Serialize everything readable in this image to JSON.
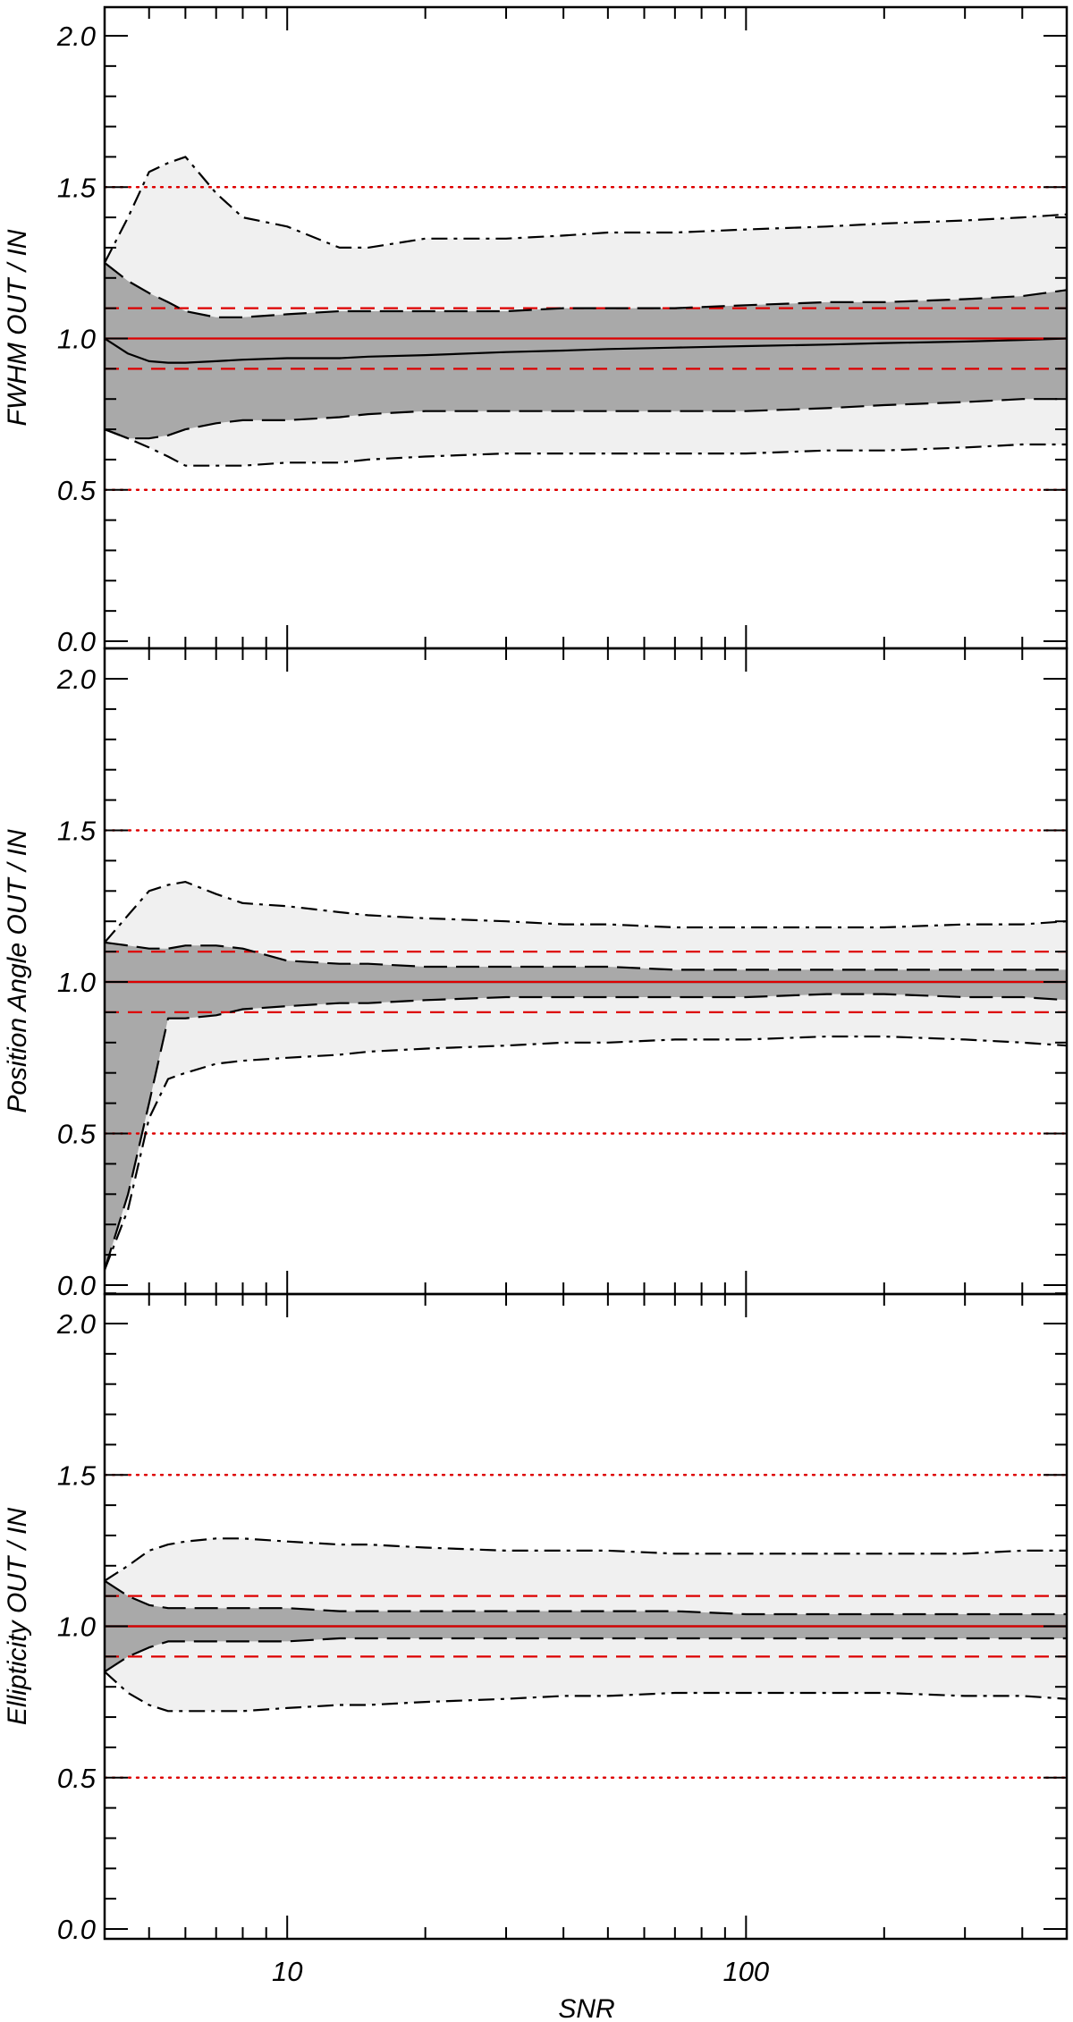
{
  "chart_data": {
    "type": "area",
    "shared_x_axis": {
      "label": "SNR",
      "scale": "log",
      "range": [
        4,
        500
      ],
      "major_ticks": [
        10,
        100
      ],
      "tick_labels": [
        "10",
        "100"
      ]
    },
    "y_range": [
      0,
      2.1
    ],
    "y_ticks": [
      0.0,
      0.5,
      1.0,
      1.5,
      2.0
    ],
    "y_tick_labels": [
      "0.0",
      "0.5",
      "1.0",
      "1.5",
      "2.0"
    ],
    "reference_lines": {
      "color_red": "#dd0000",
      "solid": [
        1.0
      ],
      "dashed": [
        0.9,
        1.1
      ],
      "dotted": [
        0.5,
        1.5
      ]
    },
    "band_colors": {
      "outer": "#f0f0f0",
      "inner": "#a9a9a9",
      "lines": "#000000"
    },
    "panels": [
      {
        "ylabel": "FWHM OUT / IN",
        "x": [
          4,
          4.5,
          5,
          5.5,
          6,
          7,
          8,
          10,
          13,
          15,
          20,
          30,
          40,
          50,
          70,
          100,
          150,
          200,
          300,
          400,
          500
        ],
        "median": [
          1.0,
          0.95,
          0.925,
          0.92,
          0.92,
          0.925,
          0.93,
          0.935,
          0.935,
          0.94,
          0.945,
          0.955,
          0.96,
          0.965,
          0.97,
          0.975,
          0.98,
          0.985,
          0.99,
          0.995,
          1.0
        ],
        "inner_upper": [
          1.25,
          1.19,
          1.15,
          1.12,
          1.09,
          1.07,
          1.07,
          1.08,
          1.09,
          1.09,
          1.09,
          1.09,
          1.1,
          1.1,
          1.1,
          1.11,
          1.12,
          1.12,
          1.13,
          1.14,
          1.16
        ],
        "inner_lower": [
          0.7,
          0.67,
          0.67,
          0.68,
          0.7,
          0.72,
          0.73,
          0.73,
          0.74,
          0.75,
          0.76,
          0.76,
          0.76,
          0.76,
          0.76,
          0.76,
          0.77,
          0.78,
          0.79,
          0.8,
          0.8
        ],
        "outer_upper": [
          1.25,
          1.4,
          1.55,
          1.58,
          1.6,
          1.48,
          1.4,
          1.37,
          1.3,
          1.3,
          1.33,
          1.33,
          1.34,
          1.35,
          1.35,
          1.36,
          1.37,
          1.38,
          1.39,
          1.4,
          1.41
        ],
        "outer_lower": [
          0.7,
          0.67,
          0.64,
          0.61,
          0.58,
          0.58,
          0.58,
          0.59,
          0.59,
          0.6,
          0.61,
          0.62,
          0.62,
          0.62,
          0.62,
          0.62,
          0.63,
          0.63,
          0.64,
          0.65,
          0.65
        ]
      },
      {
        "ylabel": "Position Angle OUT / IN",
        "x": [
          4,
          4.5,
          5,
          5.5,
          6,
          7,
          8,
          10,
          13,
          15,
          20,
          30,
          40,
          50,
          70,
          100,
          150,
          200,
          300,
          400,
          500
        ],
        "median": [
          1.0,
          1.0,
          1.0,
          1.0,
          1.0,
          1.0,
          1.0,
          1.0,
          1.0,
          1.0,
          1.0,
          1.0,
          1.0,
          1.0,
          1.0,
          1.0,
          1.0,
          1.0,
          1.0,
          1.0,
          1.0
        ],
        "inner_upper": [
          1.13,
          1.12,
          1.11,
          1.11,
          1.12,
          1.12,
          1.11,
          1.07,
          1.06,
          1.06,
          1.05,
          1.05,
          1.05,
          1.05,
          1.04,
          1.04,
          1.04,
          1.04,
          1.04,
          1.04,
          1.04
        ],
        "inner_lower": [
          0.05,
          0.3,
          0.6,
          0.88,
          0.88,
          0.89,
          0.91,
          0.92,
          0.93,
          0.93,
          0.94,
          0.95,
          0.95,
          0.95,
          0.95,
          0.95,
          0.96,
          0.96,
          0.95,
          0.95,
          0.94
        ],
        "outer_upper": [
          1.13,
          1.22,
          1.3,
          1.32,
          1.33,
          1.29,
          1.26,
          1.25,
          1.23,
          1.22,
          1.21,
          1.2,
          1.19,
          1.19,
          1.18,
          1.18,
          1.18,
          1.18,
          1.19,
          1.19,
          1.2
        ],
        "outer_lower": [
          0.05,
          0.25,
          0.55,
          0.68,
          0.7,
          0.73,
          0.74,
          0.75,
          0.76,
          0.77,
          0.78,
          0.79,
          0.8,
          0.8,
          0.81,
          0.81,
          0.82,
          0.82,
          0.81,
          0.8,
          0.79
        ]
      },
      {
        "ylabel": "Ellipticity OUT / IN",
        "x": [
          4,
          4.5,
          5,
          5.5,
          6,
          7,
          8,
          10,
          13,
          15,
          20,
          30,
          40,
          50,
          70,
          100,
          150,
          200,
          300,
          400,
          500
        ],
        "median": [
          1.0,
          1.0,
          1.0,
          1.0,
          1.0,
          1.0,
          1.0,
          1.0,
          1.0,
          1.0,
          1.0,
          1.0,
          1.0,
          1.0,
          1.0,
          1.0,
          1.0,
          1.0,
          1.0,
          1.0,
          1.0
        ],
        "inner_upper": [
          1.15,
          1.1,
          1.07,
          1.06,
          1.06,
          1.06,
          1.06,
          1.06,
          1.05,
          1.05,
          1.05,
          1.05,
          1.05,
          1.05,
          1.05,
          1.04,
          1.04,
          1.04,
          1.04,
          1.04,
          1.04
        ],
        "inner_lower": [
          0.85,
          0.9,
          0.93,
          0.95,
          0.95,
          0.95,
          0.95,
          0.95,
          0.96,
          0.96,
          0.96,
          0.96,
          0.96,
          0.96,
          0.96,
          0.96,
          0.96,
          0.96,
          0.96,
          0.96,
          0.96
        ],
        "outer_upper": [
          1.15,
          1.2,
          1.25,
          1.27,
          1.28,
          1.29,
          1.29,
          1.28,
          1.27,
          1.27,
          1.26,
          1.25,
          1.25,
          1.25,
          1.24,
          1.24,
          1.24,
          1.24,
          1.24,
          1.25,
          1.25
        ],
        "outer_lower": [
          0.85,
          0.78,
          0.74,
          0.72,
          0.72,
          0.72,
          0.72,
          0.73,
          0.74,
          0.74,
          0.75,
          0.76,
          0.77,
          0.77,
          0.78,
          0.78,
          0.78,
          0.78,
          0.77,
          0.77,
          0.76
        ]
      }
    ]
  }
}
